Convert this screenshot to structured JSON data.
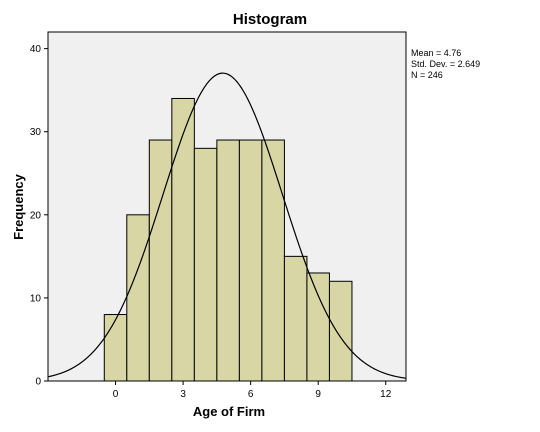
{
  "chart_data": {
    "type": "bar",
    "title": "Histogram",
    "xlabel": "Age of Firm",
    "ylabel": "Frequency",
    "bin_width": 1,
    "bins": [
      {
        "center": 0,
        "count": 8
      },
      {
        "center": 1,
        "count": 20
      },
      {
        "center": 2,
        "count": 29
      },
      {
        "center": 3,
        "count": 34
      },
      {
        "center": 4,
        "count": 28
      },
      {
        "center": 5,
        "count": 29
      },
      {
        "center": 6,
        "count": 29
      },
      {
        "center": 7,
        "count": 29
      },
      {
        "center": 8,
        "count": 15
      },
      {
        "center": 9,
        "count": 13
      },
      {
        "center": 10,
        "count": 12
      }
    ],
    "xlim": [
      -3,
      12.9
    ],
    "ylim": [
      0,
      42
    ],
    "x_ticks": [
      0,
      3,
      6,
      9,
      12
    ],
    "y_ticks": [
      0,
      10,
      20,
      30,
      40
    ],
    "normal_curve": {
      "mean": 4.76,
      "std_dev": 2.649,
      "n": 246
    },
    "stats": [
      "Mean = 4.76",
      "Std. Dev. = 2.649",
      "N = 246"
    ],
    "legend_position": "top-right",
    "grid": false,
    "colors": {
      "bar_fill": "#d8d6a4",
      "bar_stroke": "#000000",
      "plot_bg": "#f0f0f0",
      "curve": "#000000"
    }
  }
}
